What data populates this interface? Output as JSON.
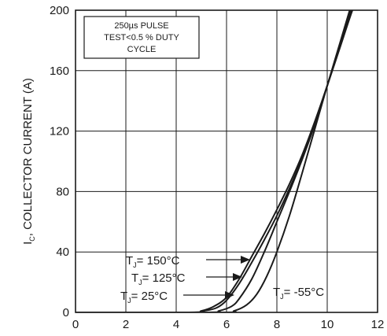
{
  "chart_data": {
    "type": "line",
    "ylabel": {
      "main": "I",
      "sub": "C",
      "rest": ", COLLECTOR CURRENT (A)"
    },
    "xlim": [
      0,
      12
    ],
    "ylim": [
      0,
      200
    ],
    "x_ticks": [
      0,
      2,
      4,
      6,
      8,
      10,
      12
    ],
    "y_ticks": [
      0,
      40,
      80,
      120,
      160,
      200
    ],
    "x_tick_labels": [
      "0",
      "2",
      "4",
      "6",
      "8",
      "10",
      "12"
    ],
    "y_tick_labels": [
      "0",
      "40",
      "80",
      "120",
      "160",
      "200"
    ],
    "grid": true,
    "note_lines": [
      "250µs PULSE",
      "TEST<0.5 % DUTY",
      "CYCLE"
    ],
    "series": [
      {
        "label": {
          "main": "T",
          "sub": "J",
          "rest": "= 150°C"
        },
        "x": [
          0,
          4.5,
          5.0,
          5.5,
          6.0,
          6.5,
          7.0,
          7.5,
          8.0,
          8.5,
          9.0,
          9.5,
          10.0,
          10.5,
          11.0,
          11.3
        ],
        "y": [
          0,
          0,
          1,
          4,
          10,
          22,
          37,
          52,
          68,
          85,
          104,
          126,
          150,
          175,
          200,
          212
        ]
      },
      {
        "label": {
          "main": "T",
          "sub": "J",
          "rest": "= 125°C"
        },
        "x": [
          0,
          4.6,
          5.1,
          5.6,
          6.0,
          6.5,
          7.0,
          7.5,
          8.0,
          8.5,
          9.0,
          9.5,
          10.0,
          10.5,
          11.0,
          11.3
        ],
        "y": [
          0,
          0,
          1,
          3,
          8,
          19,
          33,
          48,
          64,
          82,
          102,
          125,
          150,
          176,
          201,
          214
        ]
      },
      {
        "label": {
          "main": "T",
          "sub": "J",
          "rest": "= 25°C"
        },
        "x": [
          0,
          5.2,
          5.7,
          6.2,
          6.5,
          7.0,
          7.5,
          8.0,
          8.5,
          9.0,
          9.5,
          10.0,
          10.5,
          11.0,
          11.4
        ],
        "y": [
          0,
          0,
          1,
          4,
          9,
          22,
          40,
          60,
          80,
          101,
          124,
          150,
          177,
          203,
          222
        ]
      },
      {
        "label": {
          "main": "T",
          "sub": "J",
          "rest": "= -55°C"
        },
        "x": [
          0,
          5.8,
          6.3,
          6.8,
          7.2,
          7.6,
          8.0,
          8.5,
          9.0,
          9.5,
          10.0,
          10.5,
          11.0,
          11.4
        ],
        "y": [
          0,
          0,
          1,
          5,
          12,
          24,
          40,
          64,
          92,
          121,
          150,
          178,
          206,
          228
        ]
      }
    ]
  }
}
